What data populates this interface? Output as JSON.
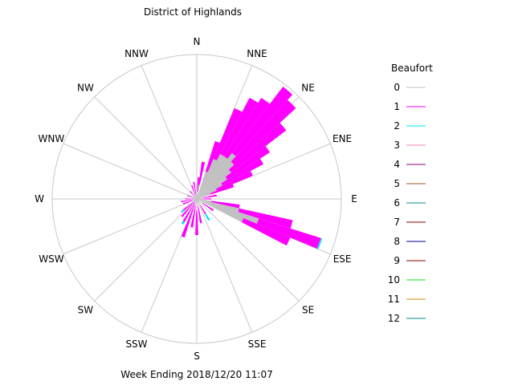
{
  "title": "District of Highlands",
  "footer": "Week Ending 2018/12/20 11:07",
  "colors": {
    "grid": "#c8c8c8",
    "calm": "#c0c0c0",
    "beaufort1": "#ff00ff",
    "beaufort2": "#00e5ee"
  },
  "chart_data": {
    "type": "wind-rose",
    "title": "District of Highlands",
    "compass_labels": [
      "N",
      "NNE",
      "NE",
      "ENE",
      "E",
      "ESE",
      "SE",
      "SSE",
      "S",
      "SSW",
      "SW",
      "WSW",
      "W",
      "WNW",
      "NW",
      "NNW"
    ],
    "legend": {
      "title": "Beaufort",
      "entries": [
        {
          "label": "0",
          "color": "#c0c0c0"
        },
        {
          "label": "1",
          "color": "#ff00ff"
        },
        {
          "label": "2",
          "color": "#00e5ee"
        },
        {
          "label": "3",
          "color": "#ff80c0"
        },
        {
          "label": "4",
          "color": "#8b008b"
        },
        {
          "label": "5",
          "color": "#a0522d"
        },
        {
          "label": "6",
          "color": "#008b8b"
        },
        {
          "label": "7",
          "color": "#8b0000"
        },
        {
          "label": "8",
          "color": "#00008b"
        },
        {
          "label": "9",
          "color": "#8b0000"
        },
        {
          "label": "10",
          "color": "#00ee00"
        },
        {
          "label": "11",
          "color": "#cd8500"
        },
        {
          "label": "12",
          "color": "#008b8b"
        }
      ]
    },
    "scale_max": 1.0,
    "sector_width_deg": 5,
    "wedges": [
      {
        "dir": 5,
        "levels": [
          0.05,
          0.15
        ]
      },
      {
        "dir": 10,
        "levels": [
          0.1,
          0.26
        ]
      },
      {
        "dir": 20,
        "levels": [
          0.2,
          0.42
        ]
      },
      {
        "dir": 25,
        "levels": [
          0.3,
          0.68
        ]
      },
      {
        "dir": 30,
        "levels": [
          0.35,
          0.79
        ]
      },
      {
        "dir": 35,
        "levels": [
          0.35,
          0.83
        ]
      },
      {
        "dir": 40,
        "levels": [
          0.4,
          0.98
        ]
      },
      {
        "dir": 45,
        "levels": [
          0.35,
          0.93
        ]
      },
      {
        "dir": 50,
        "levels": [
          0.3,
          0.78
        ]
      },
      {
        "dir": 55,
        "levels": [
          0.25,
          0.6
        ]
      },
      {
        "dir": 60,
        "levels": [
          0.2,
          0.52
        ]
      },
      {
        "dir": 65,
        "levels": [
          0.15,
          0.42
        ]
      },
      {
        "dir": 70,
        "levels": [
          0.1,
          0.27
        ]
      },
      {
        "dir": 80,
        "levels": [
          0.05,
          0.14
        ]
      },
      {
        "dir": 90,
        "levels": [
          0.03,
          0.1
        ]
      },
      {
        "dir": 100,
        "levels": [
          0.1,
          0.3
        ]
      },
      {
        "dir": 105,
        "levels": [
          0.3,
          0.68
        ]
      },
      {
        "dir": 110,
        "levels": [
          0.45,
          0.9,
          0.91
        ]
      },
      {
        "dir": 115,
        "levels": [
          0.35,
          0.7
        ]
      },
      {
        "dir": 125,
        "levels": [
          0.05,
          0.14
        ]
      },
      {
        "dir": 150,
        "levels": [
          0.05,
          0.12,
          0.17
        ]
      },
      {
        "dir": 170,
        "levels": [
          0.05,
          0.17
        ]
      },
      {
        "dir": 180,
        "levels": [
          0.08,
          0.25
        ]
      },
      {
        "dir": 190,
        "levels": [
          0.05,
          0.2
        ]
      },
      {
        "dir": 200,
        "levels": [
          0.04,
          0.28
        ]
      },
      {
        "dir": 210,
        "levels": [
          0.03,
          0.18,
          0.2
        ]
      },
      {
        "dir": 220,
        "levels": [
          0.03,
          0.16
        ]
      },
      {
        "dir": 230,
        "levels": [
          0.02,
          0.12,
          0.14
        ]
      },
      {
        "dir": 250,
        "levels": [
          0.03,
          0.1
        ]
      },
      {
        "dir": 260,
        "levels": [
          0.03,
          0.11
        ]
      },
      {
        "dir": 270,
        "levels": [
          0.02,
          0.08
        ]
      },
      {
        "dir": 290,
        "levels": [
          0.02,
          0.07
        ]
      },
      {
        "dir": 320,
        "levels": [
          0.02,
          0.07
        ]
      },
      {
        "dir": 340,
        "levels": [
          0.03,
          0.1
        ]
      },
      {
        "dir": 350,
        "levels": [
          0.03,
          0.12
        ]
      }
    ]
  }
}
